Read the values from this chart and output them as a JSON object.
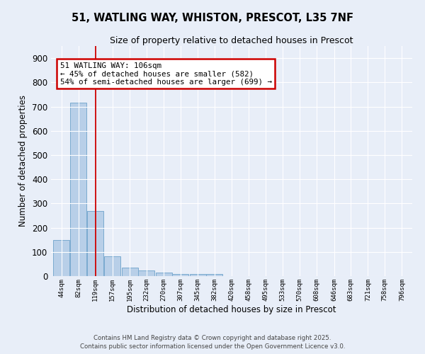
{
  "title_line1": "51, WATLING WAY, WHISTON, PRESCOT, L35 7NF",
  "title_line2": "Size of property relative to detached houses in Prescot",
  "xlabel": "Distribution of detached houses by size in Prescot",
  "ylabel": "Number of detached properties",
  "bins": [
    44,
    82,
    119,
    157,
    195,
    232,
    270,
    307,
    345,
    382,
    420,
    458,
    495,
    533,
    570,
    608,
    646,
    683,
    721,
    758,
    796
  ],
  "counts": [
    150,
    715,
    270,
    82,
    35,
    22,
    14,
    8,
    8,
    8,
    0,
    0,
    0,
    0,
    0,
    0,
    0,
    0,
    0,
    0,
    0
  ],
  "bar_color": "#b8cfe8",
  "bar_edge_color": "#7aaad0",
  "bin_step": 38,
  "vline_x": 119,
  "vline_color": "#cc0000",
  "annotation_text": "51 WATLING WAY: 106sqm\n← 45% of detached houses are smaller (582)\n54% of semi-detached houses are larger (699) →",
  "annotation_box_color": "#ffffff",
  "annotation_border_color": "#cc0000",
  "ylim": [
    0,
    950
  ],
  "yticks": [
    0,
    100,
    200,
    300,
    400,
    500,
    600,
    700,
    800,
    900
  ],
  "bg_color": "#e8eef8",
  "grid_color": "#ffffff",
  "footer_line1": "Contains HM Land Registry data © Crown copyright and database right 2025.",
  "footer_line2": "Contains public sector information licensed under the Open Government Licence v3.0."
}
